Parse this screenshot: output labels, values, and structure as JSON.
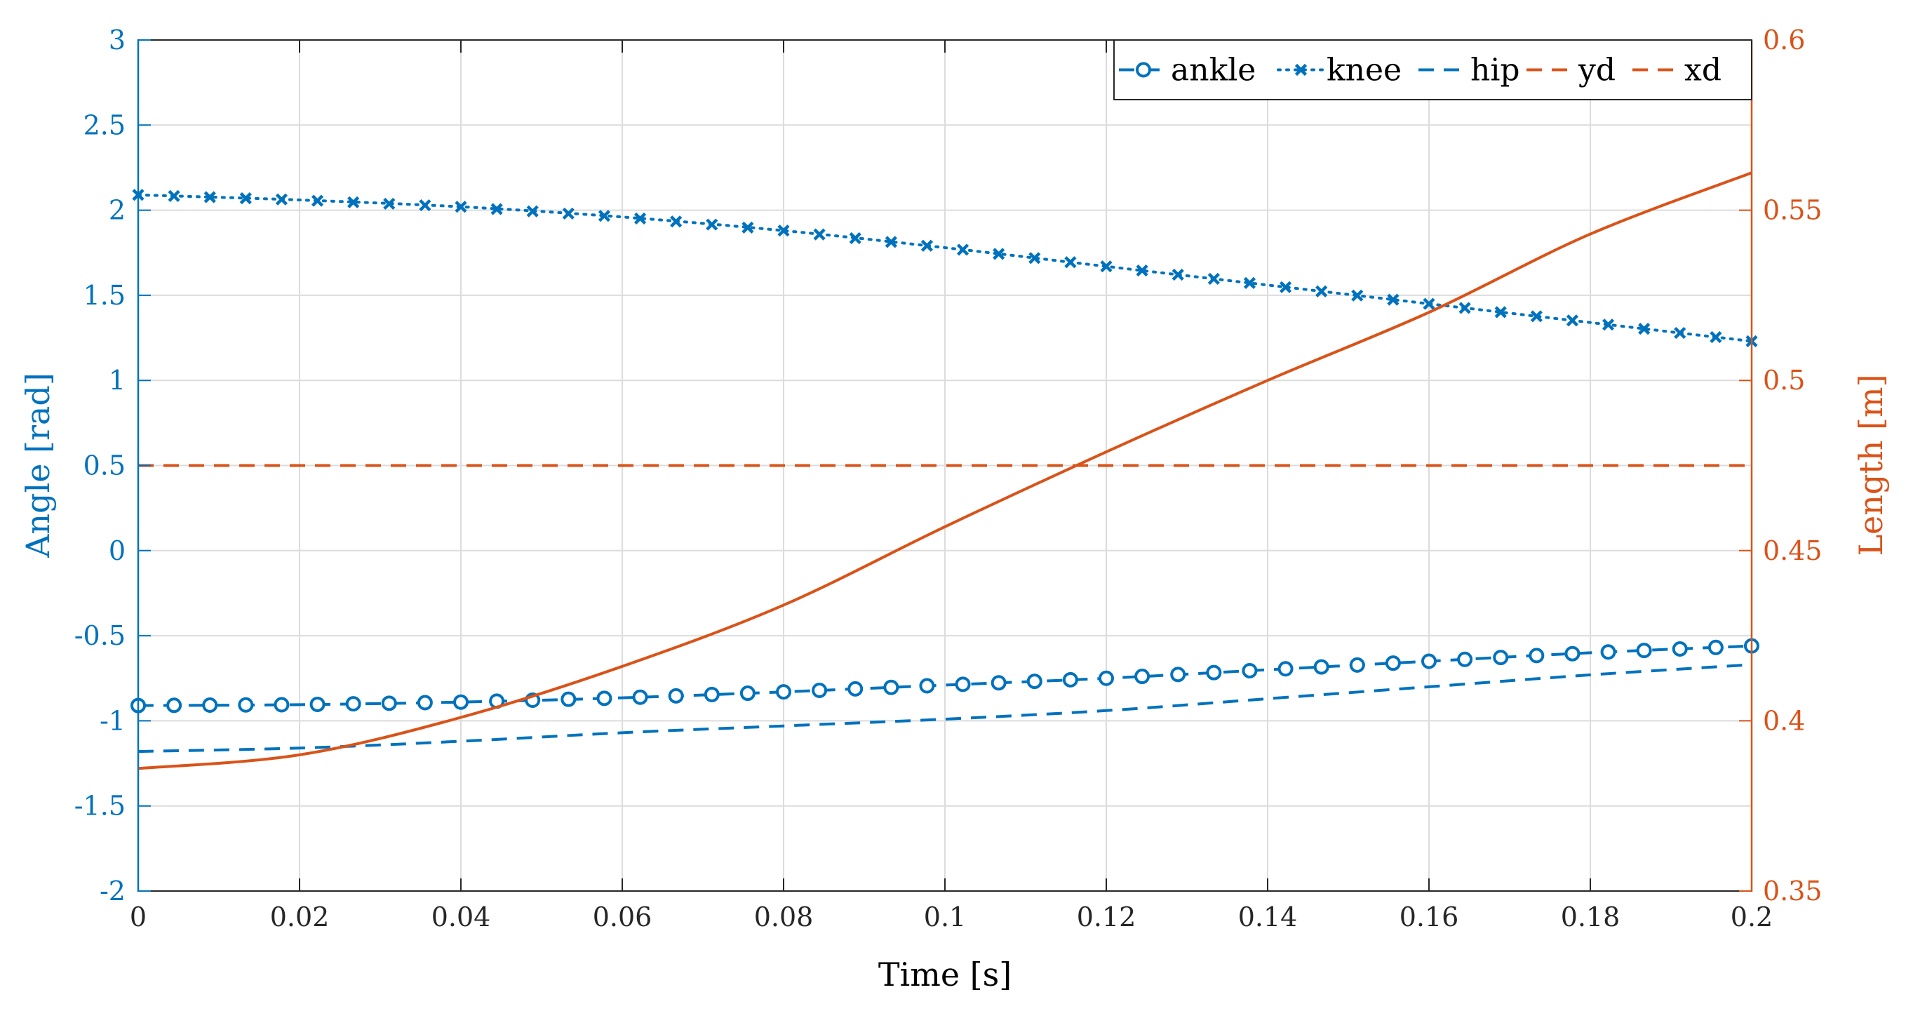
{
  "chart_data": {
    "type": "line",
    "xlabel": "Time [s]",
    "ylabel_left": "Angle [rad]",
    "ylabel_right": "Length [m]",
    "xlim": [
      0,
      0.2
    ],
    "ylim_left": [
      -2,
      3
    ],
    "ylim_right": [
      0.35,
      0.6
    ],
    "grid": true,
    "legend_position": "top-right",
    "x_ticks": [
      "0",
      "0.02",
      "0.04",
      "0.06",
      "0.08",
      "0.1",
      "0.12",
      "0.14",
      "0.16",
      "0.18",
      "0.2"
    ],
    "x_tick_values": [
      0,
      0.02,
      0.04,
      0.06,
      0.08,
      0.1,
      0.12,
      0.14,
      0.16,
      0.18,
      0.2
    ],
    "y_left_ticks": [
      "3",
      "2.5",
      "2",
      "1.5",
      "1",
      "0.5",
      "0",
      "-0.5",
      "-1",
      "-1.5",
      "-2"
    ],
    "y_left_tick_values": [
      3,
      2.5,
      2,
      1.5,
      1,
      0.5,
      0,
      -0.5,
      -1,
      -1.5,
      -2
    ],
    "y_right_ticks": [
      "0.6",
      "0.55",
      "0.5",
      "0.45",
      "0.4",
      "0.35"
    ],
    "y_right_tick_values": [
      0.6,
      0.55,
      0.5,
      0.45,
      0.4,
      0.35
    ],
    "series": [
      {
        "name": "ankle",
        "axis": "left",
        "color": "#0072BD",
        "style": "solid-circle",
        "x": [
          0,
          0.02,
          0.04,
          0.06,
          0.08,
          0.1,
          0.12,
          0.14,
          0.16,
          0.18,
          0.2
        ],
        "values": [
          -0.91,
          -0.905,
          -0.89,
          -0.865,
          -0.83,
          -0.79,
          -0.75,
          -0.7,
          -0.65,
          -0.6,
          -0.56
        ]
      },
      {
        "name": "knee",
        "axis": "left",
        "color": "#0072BD",
        "style": "dotted-x",
        "x": [
          0,
          0.02,
          0.04,
          0.06,
          0.08,
          0.1,
          0.12,
          0.14,
          0.16,
          0.18,
          0.2
        ],
        "values": [
          2.09,
          2.06,
          2.02,
          1.96,
          1.88,
          1.78,
          1.67,
          1.56,
          1.45,
          1.34,
          1.23
        ]
      },
      {
        "name": "hip",
        "axis": "left",
        "color": "#0072BD",
        "style": "dashed",
        "x": [
          0,
          0.02,
          0.04,
          0.06,
          0.08,
          0.1,
          0.12,
          0.14,
          0.16,
          0.18,
          0.2
        ],
        "values": [
          -1.18,
          -1.16,
          -1.12,
          -1.07,
          -1.03,
          -0.99,
          -0.94,
          -0.87,
          -0.8,
          -0.73,
          -0.67
        ]
      },
      {
        "name": "yd",
        "axis": "right",
        "color": "#D95319",
        "style": "solid",
        "x": [
          0,
          0.02,
          0.04,
          0.06,
          0.08,
          0.1,
          0.12,
          0.14,
          0.16,
          0.18,
          0.2
        ],
        "values": [
          0.386,
          0.39,
          0.401,
          0.416,
          0.434,
          0.457,
          0.479,
          0.5,
          0.52,
          0.543,
          0.561
        ]
      },
      {
        "name": "xd",
        "axis": "right",
        "color": "#D95319",
        "style": "dashed",
        "x": [
          0,
          0.2
        ],
        "values": [
          0.475,
          0.475
        ]
      }
    ]
  }
}
